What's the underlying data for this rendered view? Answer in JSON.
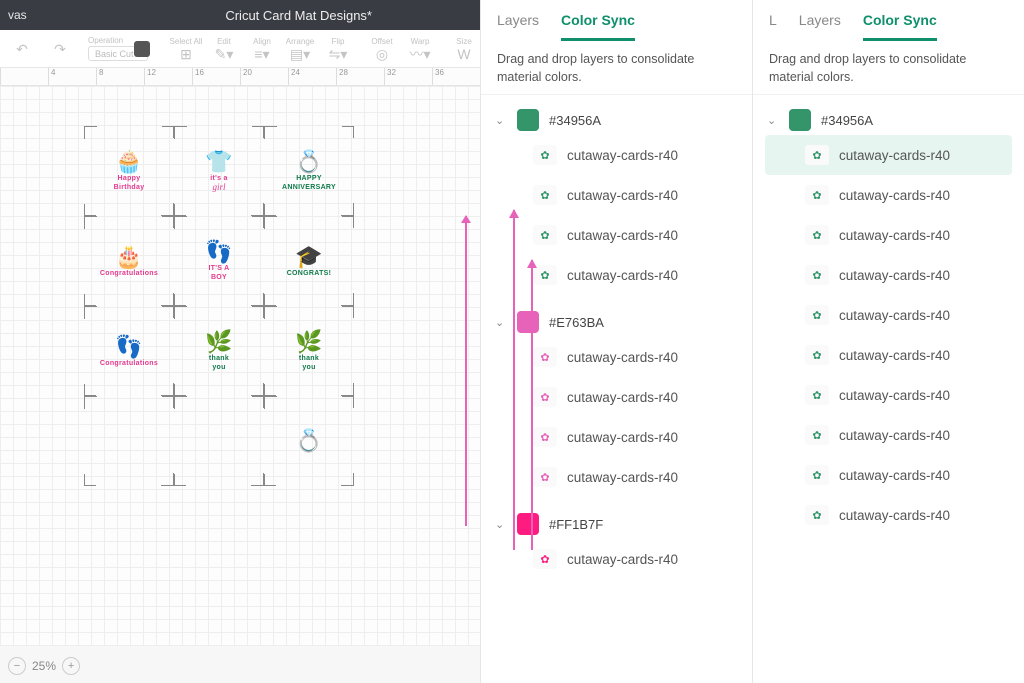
{
  "header": {
    "appTab": "vas",
    "title": "Cricut Card Mat Designs*"
  },
  "toolbar": {
    "operation_label": "Operation",
    "operation_value": "Basic Cut",
    "select_all": "Select All",
    "edit": "Edit",
    "align": "Align",
    "arrange": "Arrange",
    "flip": "Flip",
    "offset": "Offset",
    "warp": "Warp",
    "size": "Size"
  },
  "ruler": [
    "",
    "4",
    "8",
    "12",
    "16",
    "20",
    "24",
    "28",
    "32",
    "36"
  ],
  "cards": [
    {
      "art": "🧁",
      "txt": "Happy",
      "sub": "Birthday",
      "color": "#e23a8f"
    },
    {
      "art": "👕",
      "txt": "it's a",
      "sub": "girl",
      "color": "#e23a8f",
      "script": true
    },
    {
      "art": "💍",
      "txt": "HAPPY",
      "sub": "ANNIVERSARY",
      "color": "#0f7a4a"
    },
    {
      "art": "🎂",
      "txt": "",
      "sub": "Congratulations",
      "color": "#e23a8f"
    },
    {
      "art": "👣",
      "txt": "IT'S A",
      "sub": "BOY",
      "color": "#e23a8f"
    },
    {
      "art": "🎓",
      "txt": "",
      "sub": "CONGRATS!",
      "color": "#0f7a4a"
    },
    {
      "art": "👣",
      "txt": "",
      "sub": "Congratulations",
      "color": "#e23a8f"
    },
    {
      "art": "🌿",
      "txt": "thank",
      "sub": "you",
      "color": "#0f7a4a"
    },
    {
      "art": "🌿",
      "txt": "thank",
      "sub": "you",
      "color": "#0f7a4a"
    },
    null,
    null,
    {
      "art": "💍",
      "txt": "",
      "sub": "",
      "color": "#e23a8f"
    }
  ],
  "zoom": "25%",
  "arrows_color": "#e763ba",
  "panels": {
    "tabs": {
      "layers": "Layers",
      "colorSync": "Color Sync",
      "lShort": "L"
    },
    "hint": "Drag and drop layers to consolidate material colors.",
    "left": {
      "groups": [
        {
          "hex": "#34956A",
          "swatch": "#34956A",
          "items": [
            {
              "name": "cutaway-cards-r40",
              "c": "#34956A"
            },
            {
              "name": "cutaway-cards-r40",
              "c": "#34956A"
            },
            {
              "name": "cutaway-cards-r40",
              "c": "#34956A"
            },
            {
              "name": "cutaway-cards-r40",
              "c": "#34956A"
            }
          ]
        },
        {
          "hex": "#E763BA",
          "swatch": "#E763BA",
          "items": [
            {
              "name": "cutaway-cards-r40",
              "c": "#E763BA"
            },
            {
              "name": "cutaway-cards-r40",
              "c": "#E763BA"
            },
            {
              "name": "cutaway-cards-r40",
              "c": "#E763BA"
            },
            {
              "name": "cutaway-cards-r40",
              "c": "#E763BA"
            }
          ]
        },
        {
          "hex": "#FF1B7F",
          "swatch": "#FF1B7F",
          "items": [
            {
              "name": "cutaway-cards-r40",
              "c": "#FF1B7F"
            }
          ]
        }
      ]
    },
    "right": {
      "groups": [
        {
          "hex": "#34956A",
          "swatch": "#34956A",
          "items": [
            {
              "name": "cutaway-cards-r40",
              "c": "#34956A",
              "highlight": true
            },
            {
              "name": "cutaway-cards-r40",
              "c": "#34956A"
            },
            {
              "name": "cutaway-cards-r40",
              "c": "#34956A"
            },
            {
              "name": "cutaway-cards-r40",
              "c": "#34956A"
            },
            {
              "name": "cutaway-cards-r40",
              "c": "#34956A"
            },
            {
              "name": "cutaway-cards-r40",
              "c": "#34956A"
            },
            {
              "name": "cutaway-cards-r40",
              "c": "#34956A"
            },
            {
              "name": "cutaway-cards-r40",
              "c": "#34956A"
            },
            {
              "name": "cutaway-cards-r40",
              "c": "#34956A"
            },
            {
              "name": "cutaway-cards-r40",
              "c": "#34956A"
            }
          ]
        }
      ]
    }
  }
}
